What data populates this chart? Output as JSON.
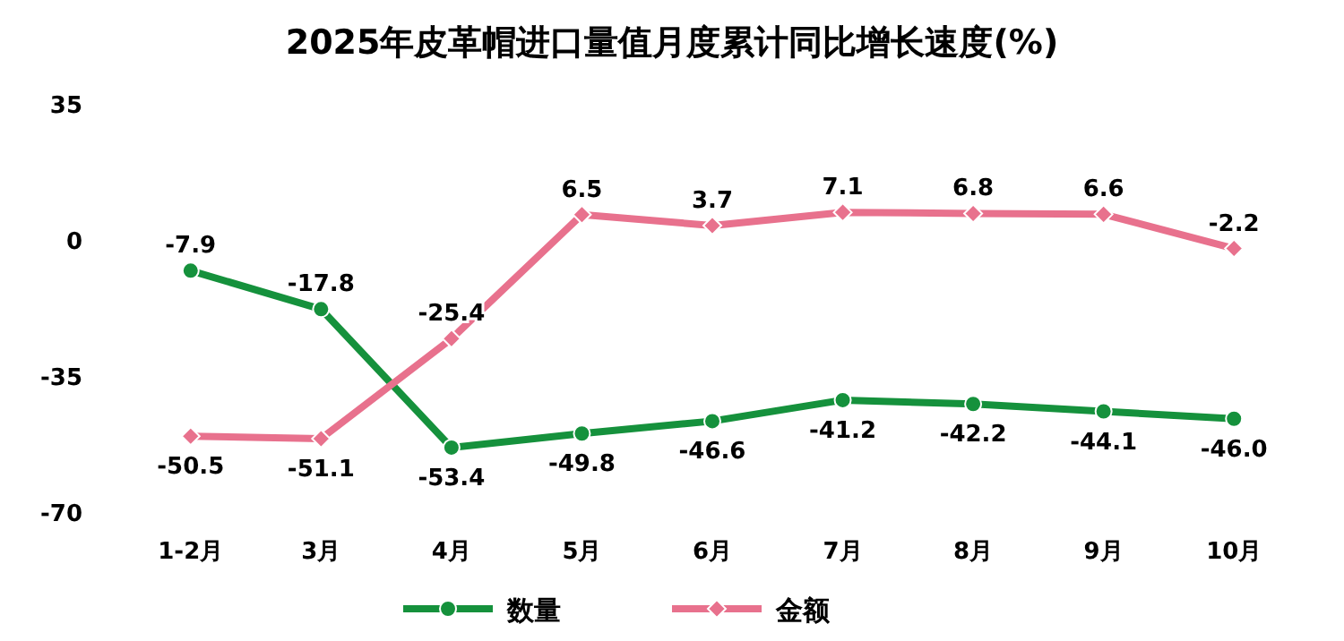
{
  "chart_data": {
    "type": "line",
    "title": "2025年皮革帽进口量值月度累计同比增长速度(%)",
    "categories": [
      "1-2月",
      "3月",
      "4月",
      "5月",
      "6月",
      "7月",
      "8月",
      "9月",
      "10月"
    ],
    "series": [
      {
        "name": "数量",
        "color": "#15913c",
        "marker": "circle",
        "values": [
          -7.9,
          -17.8,
          -53.4,
          -49.8,
          -46.6,
          -41.2,
          -42.2,
          -44.1,
          -46.0
        ],
        "value_labels": [
          "-7.9",
          "-17.8",
          "-53.4",
          "-49.8",
          "-46.6",
          "-41.2",
          "-42.2",
          "-44.1",
          "-46.0"
        ]
      },
      {
        "name": "金额",
        "color": "#e8718d",
        "marker": "diamond",
        "values": [
          -50.5,
          -51.1,
          -25.4,
          6.5,
          3.7,
          7.1,
          6.8,
          6.6,
          -2.2
        ],
        "value_labels": [
          "-50.5",
          "-51.1",
          "-25.4",
          "6.5",
          "3.7",
          "7.1",
          "6.8",
          "6.6",
          "-2.2"
        ]
      }
    ],
    "ylim": [
      -70,
      35
    ],
    "yticks": [
      -70,
      -35,
      0,
      35
    ],
    "legend": "bottom"
  }
}
